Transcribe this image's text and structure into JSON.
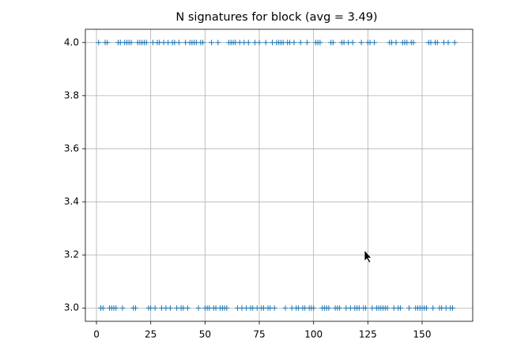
{
  "chart_data": {
    "type": "scatter",
    "title": "N signatures for block (avg = 3.49)",
    "marker": "+",
    "color": "#1f77b4",
    "grid": true,
    "x": [
      1,
      2,
      3,
      4,
      5,
      6,
      7,
      8,
      9,
      10,
      11,
      12,
      13,
      14,
      15,
      16,
      17,
      18,
      19,
      20,
      21,
      22,
      23,
      24,
      25,
      26,
      27,
      28,
      29,
      30,
      31,
      32,
      33,
      34,
      35,
      36,
      37,
      38,
      39,
      40,
      41,
      42,
      43,
      44,
      45,
      46,
      47,
      48,
      49,
      50,
      51,
      52,
      53,
      54,
      55,
      56,
      57,
      58,
      59,
      60,
      61,
      62,
      63,
      64,
      65,
      66,
      67,
      68,
      69,
      70,
      71,
      72,
      73,
      74,
      75,
      76,
      77,
      78,
      79,
      80,
      81,
      82,
      83,
      84,
      85,
      86,
      87,
      88,
      89,
      90,
      91,
      92,
      93,
      94,
      95,
      96,
      97,
      98,
      99,
      100,
      101,
      102,
      103,
      104,
      105,
      106,
      107,
      108,
      109,
      110,
      111,
      112,
      113,
      114,
      115,
      116,
      117,
      118,
      119,
      120,
      121,
      122,
      123,
      124,
      125,
      126,
      127,
      128,
      129,
      130,
      131,
      132,
      133,
      134,
      135,
      136,
      137,
      138,
      139,
      140,
      141,
      142,
      143,
      144,
      145,
      146,
      147,
      148,
      149,
      150,
      151,
      152,
      153,
      154,
      155,
      156,
      157,
      158,
      159,
      160,
      161,
      162,
      163,
      164,
      165
    ],
    "values": [
      4,
      3,
      3,
      4,
      4,
      3,
      3,
      3,
      3,
      4,
      4,
      3,
      4,
      4,
      4,
      4,
      3,
      3,
      4,
      4,
      4,
      4,
      4,
      3,
      3,
      4,
      3,
      4,
      4,
      3,
      4,
      3,
      4,
      3,
      4,
      4,
      3,
      4,
      3,
      3,
      4,
      3,
      4,
      4,
      4,
      4,
      3,
      4,
      4,
      3,
      3,
      3,
      4,
      3,
      3,
      4,
      3,
      3,
      3,
      3,
      4,
      4,
      4,
      4,
      3,
      4,
      3,
      4,
      3,
      4,
      3,
      3,
      4,
      3,
      4,
      3,
      3,
      4,
      3,
      3,
      4,
      3,
      4,
      4,
      4,
      4,
      3,
      4,
      4,
      3,
      4,
      3,
      3,
      4,
      3,
      3,
      4,
      3,
      3,
      3,
      4,
      4,
      4,
      3,
      3,
      3,
      3,
      4,
      4,
      3,
      3,
      3,
      4,
      4,
      3,
      4,
      3,
      4,
      3,
      3,
      3,
      4,
      3,
      3,
      4,
      4,
      3,
      4,
      3,
      3,
      3,
      3,
      3,
      3,
      4,
      4,
      3,
      4,
      3,
      3,
      4,
      4,
      4,
      3,
      4,
      4,
      3,
      3,
      3,
      3,
      3,
      3,
      4,
      4,
      3,
      4,
      4,
      3,
      3,
      4,
      3,
      4,
      3,
      3,
      4
    ],
    "xlim": [
      -5.1,
      173.3
    ],
    "xticks": [
      0,
      25,
      50,
      75,
      100,
      125,
      150
    ],
    "ylim": [
      2.95,
      4.05
    ],
    "yticks": [
      {
        "value": 3,
        "label": "3.0"
      },
      {
        "value": 3.2,
        "label": "3.2"
      },
      {
        "value": 3.4,
        "label": "3.4"
      },
      {
        "value": 3.6,
        "label": "3.6"
      },
      {
        "value": 3.8,
        "label": "3.8"
      },
      {
        "value": 4,
        "label": "4.0"
      }
    ]
  }
}
